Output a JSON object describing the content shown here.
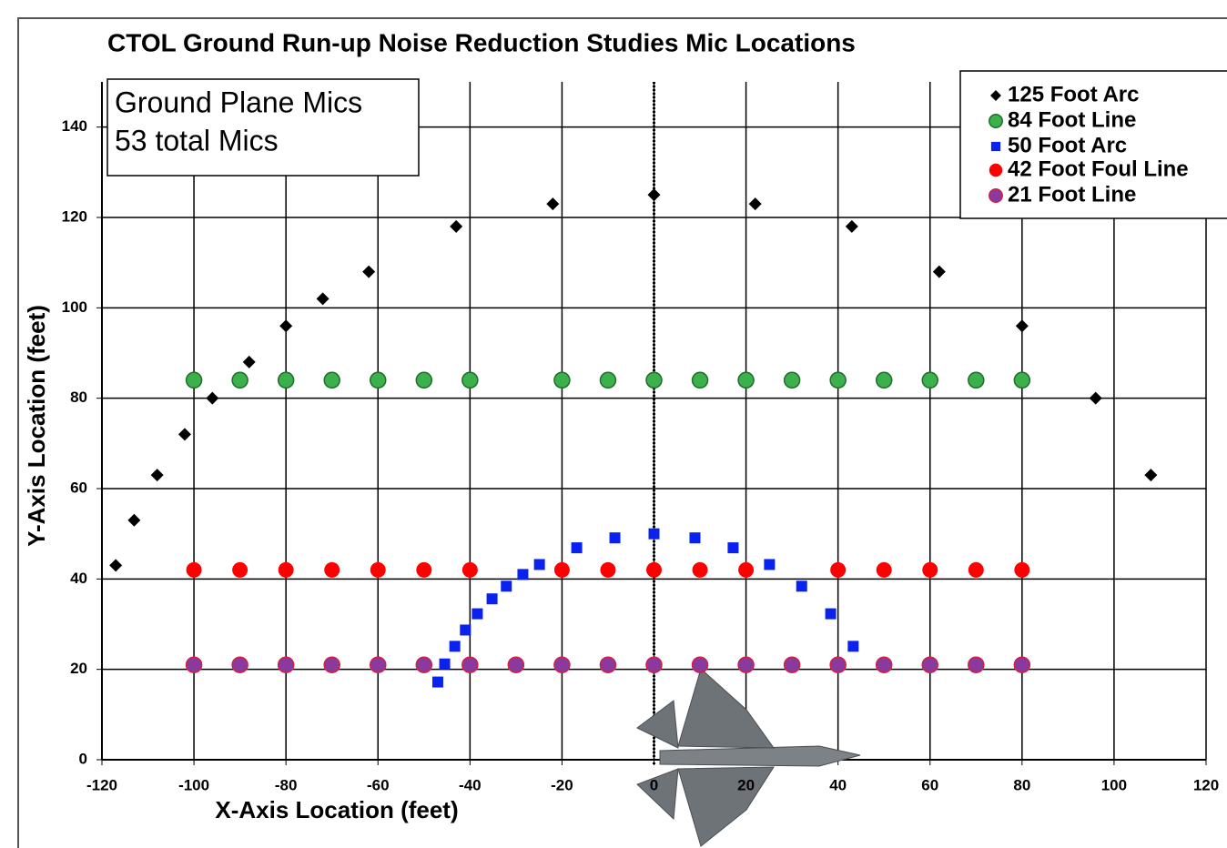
{
  "chart_data": {
    "type": "scatter",
    "title": "CTOL Ground Run-up Noise Reduction Studies Mic Locations",
    "annotations": [
      "Ground Plane Mics",
      "53 total Mics"
    ],
    "x_label": "X-Axis Location (feet)",
    "y_label": "Y-Axis Location (feet)",
    "xlim": [
      -120,
      120
    ],
    "ylim": [
      0,
      150
    ],
    "xticks": [
      -120,
      -100,
      -80,
      -60,
      -40,
      -20,
      0,
      20,
      40,
      60,
      80,
      100,
      120
    ],
    "yticks": [
      0,
      20,
      40,
      60,
      80,
      100,
      120,
      140
    ],
    "grid": true,
    "legend": "upper right",
    "series": [
      {
        "name": "125 Foot Arc",
        "color": "#000000",
        "marker": "diamond",
        "x": [
          -117,
          -113,
          -108,
          -102,
          -96,
          -88,
          -80,
          -72,
          -62,
          -43,
          -22,
          0,
          22,
          43,
          62,
          80,
          96,
          108
        ],
        "values": [
          43,
          53,
          63,
          72,
          80,
          88,
          96,
          102,
          108,
          118,
          123,
          125,
          123,
          118,
          108,
          96,
          80,
          63
        ]
      },
      {
        "name": "84 Foot Line",
        "color": "#3cb04c",
        "edgecolor": "#1f6e2a",
        "marker": "circle",
        "x": [
          -100,
          -90,
          -80,
          -70,
          -60,
          -50,
          -40,
          -20,
          -10,
          0,
          10,
          20,
          30,
          40,
          50,
          60,
          70,
          80
        ],
        "values": [
          84,
          84,
          84,
          84,
          84,
          84,
          84,
          84,
          84,
          84,
          84,
          84,
          84,
          84,
          84,
          84,
          84,
          84
        ]
      },
      {
        "name": "50 Foot Arc",
        "color": "#0a22f0",
        "marker": "square",
        "x": [
          -47,
          -45.5,
          -43.3,
          -41,
          -38.4,
          -35.2,
          -32.1,
          -28.5,
          -24.9,
          -16.8,
          -8.5,
          0,
          8.9,
          17.2,
          25.1,
          32.1,
          38.4,
          43.3
        ],
        "values": [
          17.2,
          21.2,
          25.1,
          28.7,
          32.3,
          35.6,
          38.4,
          41,
          43.2,
          46.9,
          49.1,
          50,
          49.1,
          46.9,
          43.2,
          38.4,
          32.3,
          25.1
        ]
      },
      {
        "name": "42 Foot Foul Line",
        "color": "#ff0000",
        "marker": "circle",
        "x": [
          -100,
          -90,
          -80,
          -70,
          -60,
          -50,
          -40,
          -20,
          -10,
          0,
          10,
          20,
          40,
          50,
          60,
          70,
          80
        ],
        "values": [
          42,
          42,
          42,
          42,
          42,
          42,
          42,
          42,
          42,
          42,
          42,
          42,
          42,
          42,
          42,
          42,
          42
        ]
      },
      {
        "name": "21 Foot Line",
        "color": "#8a3a9e",
        "edgecolor": "#d02040",
        "marker": "circle",
        "x": [
          -100,
          -90,
          -80,
          -70,
          -60,
          -50,
          -40,
          -30,
          -20,
          -10,
          0,
          10,
          20,
          30,
          40,
          50,
          60,
          70,
          80
        ],
        "values": [
          21,
          21,
          21,
          21,
          21,
          21,
          21,
          21,
          21,
          21,
          21,
          21,
          21,
          21,
          21,
          21,
          21,
          21,
          21
        ]
      }
    ]
  }
}
